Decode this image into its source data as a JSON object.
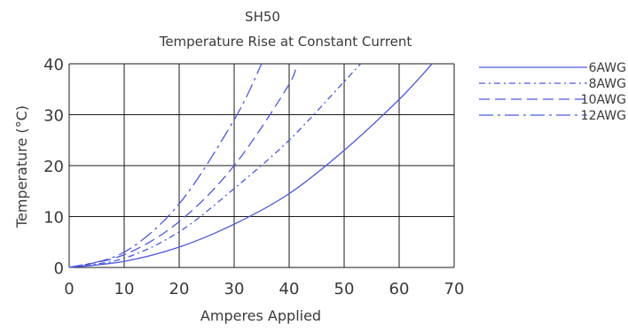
{
  "chart_data": {
    "type": "line",
    "title": "SH50",
    "subtitle": "Temperature Rise at Constant Current",
    "xlabel": "Amperes Applied",
    "ylabel": "Temperature (°C)",
    "xlim": [
      0,
      70
    ],
    "ylim": [
      0,
      40
    ],
    "xticks": [
      0,
      10,
      20,
      30,
      40,
      50,
      60,
      70
    ],
    "yticks": [
      0,
      10,
      20,
      30,
      40
    ],
    "grid": true,
    "legend_position": "right",
    "colors": {
      "line": "#4a57e6",
      "grid": "#1a1a1a",
      "text": "#3a3a3a"
    },
    "series": [
      {
        "name": "6AWG",
        "dash": "solid",
        "x": [
          0,
          10,
          20,
          30,
          40,
          50,
          60,
          66
        ],
        "y": [
          0,
          1.2,
          4,
          8.5,
          14.5,
          23,
          33,
          40
        ]
      },
      {
        "name": "8AWG",
        "dash": "dashdot",
        "x": [
          0,
          10,
          20,
          30,
          40,
          50,
          53
        ],
        "y": [
          0,
          1.8,
          7,
          15.5,
          25,
          36.5,
          40
        ]
      },
      {
        "name": "10AWG",
        "dash": "dashed",
        "x": [
          0,
          10,
          20,
          30,
          40,
          41
        ],
        "y": [
          0,
          2.5,
          9,
          20,
          36,
          40
        ]
      },
      {
        "name": "12AWG",
        "dash": "longdashdot",
        "x": [
          0,
          10,
          20,
          30,
          35
        ],
        "y": [
          0,
          3,
          12.5,
          29,
          40
        ]
      }
    ]
  }
}
